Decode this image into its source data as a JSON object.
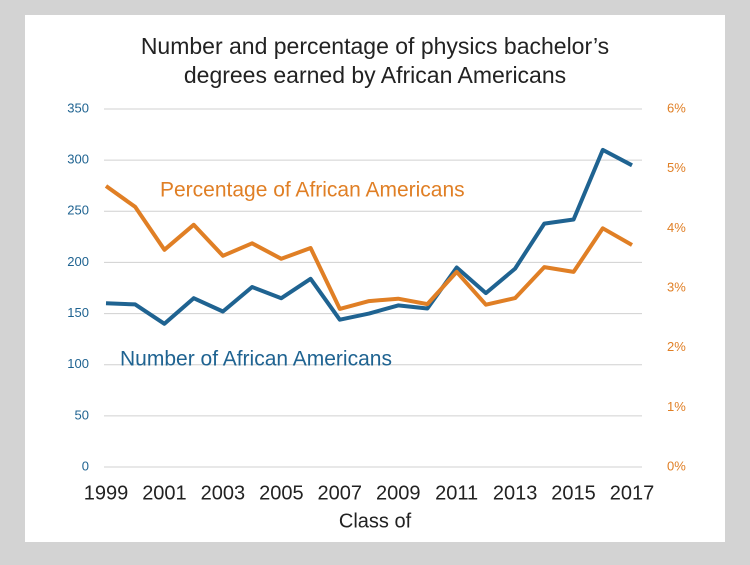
{
  "chart_data": {
    "type": "line",
    "title": [
      "Number and percentage of physics bachelor’s",
      "degrees earned by African Americans"
    ],
    "x_label": "Class of",
    "x": [
      1999,
      2000,
      2001,
      2002,
      2003,
      2004,
      2005,
      2006,
      2007,
      2008,
      2009,
      2010,
      2011,
      2012,
      2013,
      2014,
      2015,
      2016,
      2017
    ],
    "xlim": [
      1999,
      2017
    ],
    "xticks": [
      1999,
      2001,
      2003,
      2005,
      2007,
      2009,
      2011,
      2013,
      2015,
      2017
    ],
    "ylim": [
      0,
      350
    ],
    "yticks": [
      0,
      50,
      100,
      150,
      200,
      250,
      300,
      350
    ],
    "y2lim": [
      0,
      6
    ],
    "y2ticks": [
      {
        "value": 0,
        "label": "0%"
      },
      {
        "value": 1,
        "label": "1%"
      },
      {
        "value": 2,
        "label": "2%"
      },
      {
        "value": 3,
        "label": "3%"
      },
      {
        "value": 4,
        "label": "4%"
      },
      {
        "value": 5,
        "label": "5%"
      },
      {
        "value": 6,
        "label": "6%"
      }
    ],
    "grid": true,
    "series": [
      {
        "name": "Number of African Americans",
        "color": "#1f6391",
        "values": [
          160,
          159,
          140,
          165,
          152,
          176,
          165,
          184,
          144,
          150,
          158,
          155,
          195,
          170,
          194,
          238,
          242,
          310,
          295
        ]
      },
      {
        "name": "Percentage of African Americans",
        "color": "#e07f25",
        "axis": "y2",
        "values": [
          4.71,
          4.36,
          3.64,
          4.06,
          3.54,
          3.75,
          3.49,
          3.67,
          2.65,
          2.78,
          2.82,
          2.73,
          3.27,
          2.72,
          2.83,
          3.35,
          3.27,
          4.0,
          3.72
        ]
      }
    ]
  }
}
